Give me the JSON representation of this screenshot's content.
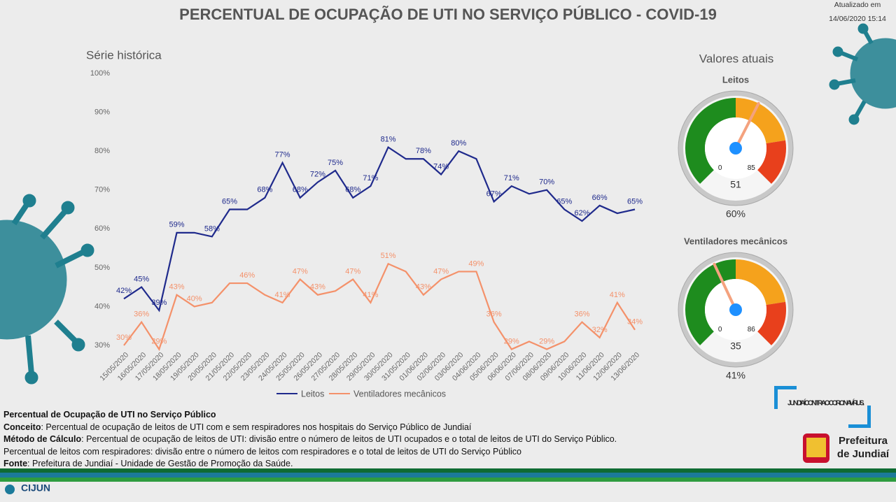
{
  "header": {
    "title": "PERCENTUAL DE OCUPAÇÃO DE UTI NO SERVIÇO PÚBLICO - COVID-19",
    "updated_label": "Atualizado em",
    "updated_at": "14/06/2020 15:14"
  },
  "sections": {
    "history": "Série histórica",
    "current": "Valores atuais"
  },
  "chart_data": [
    {
      "type": "line",
      "categories": [
        "15/05/2020",
        "16/05/2020",
        "17/05/2020",
        "18/05/2020",
        "19/05/2020",
        "20/05/2020",
        "21/05/2020",
        "22/05/2020",
        "23/05/2020",
        "24/05/2020",
        "25/05/2020",
        "26/05/2020",
        "27/05/2020",
        "28/05/2020",
        "29/05/2020",
        "30/05/2020",
        "31/05/2020",
        "01/06/2020",
        "02/06/2020",
        "03/06/2020",
        "04/06/2020",
        "05/06/2020",
        "06/06/2020",
        "07/06/2020",
        "08/06/2020",
        "09/06/2020",
        "10/06/2020",
        "11/06/2020",
        "12/06/2020",
        "13/06/2020"
      ],
      "series": [
        {
          "name": "Leitos",
          "color": "#1f2a8c",
          "values": [
            42,
            45,
            39,
            59,
            59,
            58,
            65,
            65,
            68,
            77,
            68,
            72,
            75,
            68,
            71,
            81,
            78,
            78,
            74,
            80,
            78,
            67,
            71,
            69,
            70,
            65,
            62,
            66,
            64,
            65
          ],
          "value_labels": [
            "42%",
            "45%",
            "39%",
            "59%",
            null,
            "58%",
            "65%",
            null,
            "68%",
            "77%",
            "68%",
            "72%",
            "75%",
            "68%",
            "71%",
            "81%",
            null,
            "78%",
            "74%",
            "80%",
            null,
            "67%",
            "71%",
            null,
            "70%",
            "65%",
            "62%",
            "66%",
            null,
            "65%"
          ]
        },
        {
          "name": "Ventiladores mecânicos",
          "color": "#f4916a",
          "values": [
            30,
            36,
            29,
            43,
            40,
            41,
            46,
            46,
            43,
            41,
            47,
            43,
            44,
            47,
            41,
            51,
            49,
            43,
            47,
            49,
            49,
            36,
            29,
            31,
            29,
            31,
            36,
            32,
            41,
            34
          ],
          "value_labels": [
            "30%",
            "36%",
            "29%",
            "43%",
            "40%",
            null,
            null,
            "46%",
            null,
            "41%",
            "47%",
            "43%",
            null,
            "47%",
            "41%",
            "51%",
            null,
            "43%",
            "47%",
            null,
            "49%",
            "36%",
            "29%",
            null,
            "29%",
            null,
            "36%",
            "32%",
            "41%",
            "34%"
          ]
        }
      ],
      "ylim": [
        30,
        100
      ],
      "yticks": [
        {
          "value": 30,
          "label": "30%"
        },
        {
          "value": 40,
          "label": "40%"
        },
        {
          "value": 50,
          "label": "50%"
        },
        {
          "value": 60,
          "label": "60%"
        },
        {
          "value": 70,
          "label": "70%"
        },
        {
          "value": 80,
          "label": "80%"
        },
        {
          "value": 90,
          "label": "90%"
        },
        {
          "value": 100,
          "label": "100%"
        }
      ],
      "grid": false,
      "legend": "bottom"
    },
    {
      "type": "gauge",
      "title": "Leitos",
      "value": 51,
      "range": [
        0,
        85
      ],
      "percent": 60,
      "percent_label": "60%"
    },
    {
      "type": "gauge",
      "title": "Ventiladores mecânicos",
      "value": 35,
      "range": [
        0,
        86
      ],
      "percent": 41,
      "percent_label": "41%"
    }
  ],
  "notes": {
    "heading": "Percentual de Ocupação de UTI no Serviço Público",
    "items": [
      {
        "label": "Conceito",
        "text": ": Percentual de ocupação de leitos de UTI com e sem respiradores nos hospitais do Serviço Público de Jundiaí"
      },
      {
        "label": "Método de Cálculo",
        "text": ": Percentual de ocupação de leitos de UTI: divisão entre o número de leitos de UTI ocupados e o total de leitos de UTI do Serviço Público. Percentual de leitos com respiradores: divisão entre o número de leitos com respiradores e o total de leitos de UTI do Serviço Público"
      },
      {
        "label": "Fonte",
        "text": ": Prefeitura de Jundiaí - Unidade de Gestão de Promoção da Saúde."
      }
    ]
  },
  "logos": {
    "campaign": "JUNDIAÍ CONTRA O CORONAVÍRUS.",
    "prefeitura_1": "Prefeitura",
    "prefeitura_2": "de Jundiaí",
    "cijun": "CIJUN"
  }
}
